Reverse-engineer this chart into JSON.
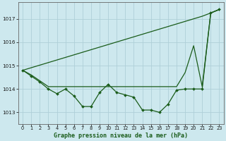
{
  "xlabel": "Graphe pression niveau de la mer (hPa)",
  "background_color": "#cde8ee",
  "grid_color": "#aecfd8",
  "line_color": "#1a5c1a",
  "xlim": [
    -0.5,
    23.5
  ],
  "ylim": [
    1012.5,
    1017.7
  ],
  "yticks": [
    1013,
    1014,
    1015,
    1016,
    1017
  ],
  "xticks": [
    0,
    1,
    2,
    3,
    4,
    5,
    6,
    7,
    8,
    9,
    10,
    11,
    12,
    13,
    14,
    15,
    16,
    17,
    18,
    19,
    20,
    21,
    22,
    23
  ],
  "line_wavy": [
    1014.8,
    1014.55,
    1014.3,
    1014.0,
    1013.8,
    1014.0,
    1013.7,
    1013.25,
    1013.25,
    1013.85,
    1014.2,
    1013.85,
    1013.75,
    1013.65,
    1013.1,
    1013.1,
    1013.0,
    1013.35,
    1013.95,
    1014.0,
    1014.0,
    1014.0,
    1017.25,
    1017.4
  ],
  "line_straight": [
    1014.8,
    1014.91,
    1015.02,
    1015.13,
    1015.24,
    1015.35,
    1015.46,
    1015.57,
    1015.68,
    1015.79,
    1015.9,
    1016.01,
    1016.12,
    1016.23,
    1016.34,
    1016.45,
    1016.56,
    1016.67,
    1016.78,
    1016.89,
    1017.0,
    1017.11,
    1017.25,
    1017.4
  ],
  "line_flat": [
    1014.8,
    1014.6,
    1014.35,
    1014.1,
    1014.1,
    1014.1,
    1014.1,
    1014.1,
    1014.1,
    1014.1,
    1014.1,
    1014.1,
    1014.1,
    1014.1,
    1014.1,
    1014.1,
    1014.1,
    1014.1,
    1014.1,
    1014.7,
    1015.85,
    1014.1,
    1017.25,
    1017.4
  ]
}
